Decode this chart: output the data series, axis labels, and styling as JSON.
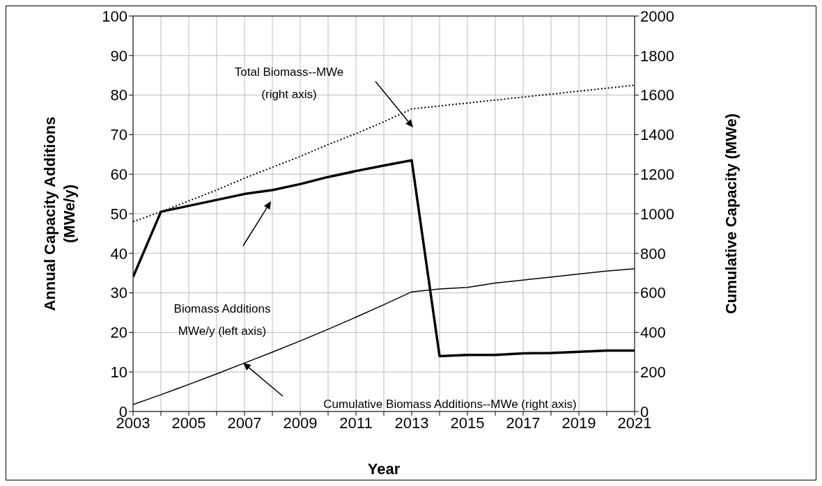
{
  "chart_data": {
    "type": "line",
    "xlabel": "Year",
    "ylabel": "Annual Capacity Additions\n(MWe/y)",
    "y2label": "Cumulative Capacity (MWe)",
    "x": [
      2003,
      2004,
      2005,
      2006,
      2007,
      2008,
      2009,
      2010,
      2011,
      2012,
      2013,
      2014,
      2015,
      2016,
      2017,
      2018,
      2019,
      2020,
      2021
    ],
    "series": [
      {
        "color": "#000000",
        "line_style": "solid",
        "values": [
          34,
          50.5,
          52,
          53.5,
          55,
          56,
          57.5,
          59.3,
          60.8,
          62.2,
          63.5,
          14,
          14.3,
          14.3,
          14.7,
          14.8,
          15.1,
          15.4,
          15.4
        ]
      },
      {
        "color": "#000000",
        "line_style": "dotted",
        "axis": "y2",
        "values": [
          960,
          1010,
          1065,
          1120,
          1180,
          1235,
          1290,
          1350,
          1405,
          1465,
          1530,
          1545,
          1560,
          1575,
          1590,
          1605,
          1620,
          1635,
          1650
        ]
      },
      {
        "color": "#000000",
        "line_style": "solid",
        "axis": "y2",
        "values": [
          35,
          85,
          137,
          190,
          245,
          300,
          357,
          416,
          477,
          540,
          605,
          620,
          628,
          650,
          665,
          680,
          695,
          710,
          722
        ]
      }
    ],
    "xlim": [
      2003,
      2021
    ],
    "xticks": [
      2003,
      {
        "value": 2004,
        "label": null
      },
      2005,
      {
        "value": 2006,
        "label": null
      },
      2007,
      {
        "value": 2008,
        "label": null
      },
      2009,
      {
        "value": 2010,
        "label": null
      },
      2011,
      {
        "value": 2012,
        "label": null
      },
      2013,
      {
        "value": 2014,
        "label": null
      },
      2015,
      {
        "value": 2016,
        "label": null
      },
      2017,
      {
        "value": 2018,
        "label": null
      },
      2019,
      {
        "value": 2020,
        "label": null
      },
      2021
    ],
    "ylim": [
      0,
      100
    ],
    "yticks": [
      0,
      10,
      20,
      30,
      40,
      50,
      60,
      70,
      80,
      90,
      100
    ],
    "y2lim": [
      0,
      2000
    ],
    "y2ticks": [
      0,
      200,
      400,
      600,
      800,
      1000,
      1200,
      1400,
      1600,
      1800,
      2000
    ],
    "grid": true,
    "legend": false,
    "marker": "none",
    "annotations": [
      "Total Biomass--MWe\n(right axis)",
      "Biomass Additions\nMWe/y (left axis)",
      "Cumulative Biomass Additions--MWe (right axis)"
    ]
  }
}
